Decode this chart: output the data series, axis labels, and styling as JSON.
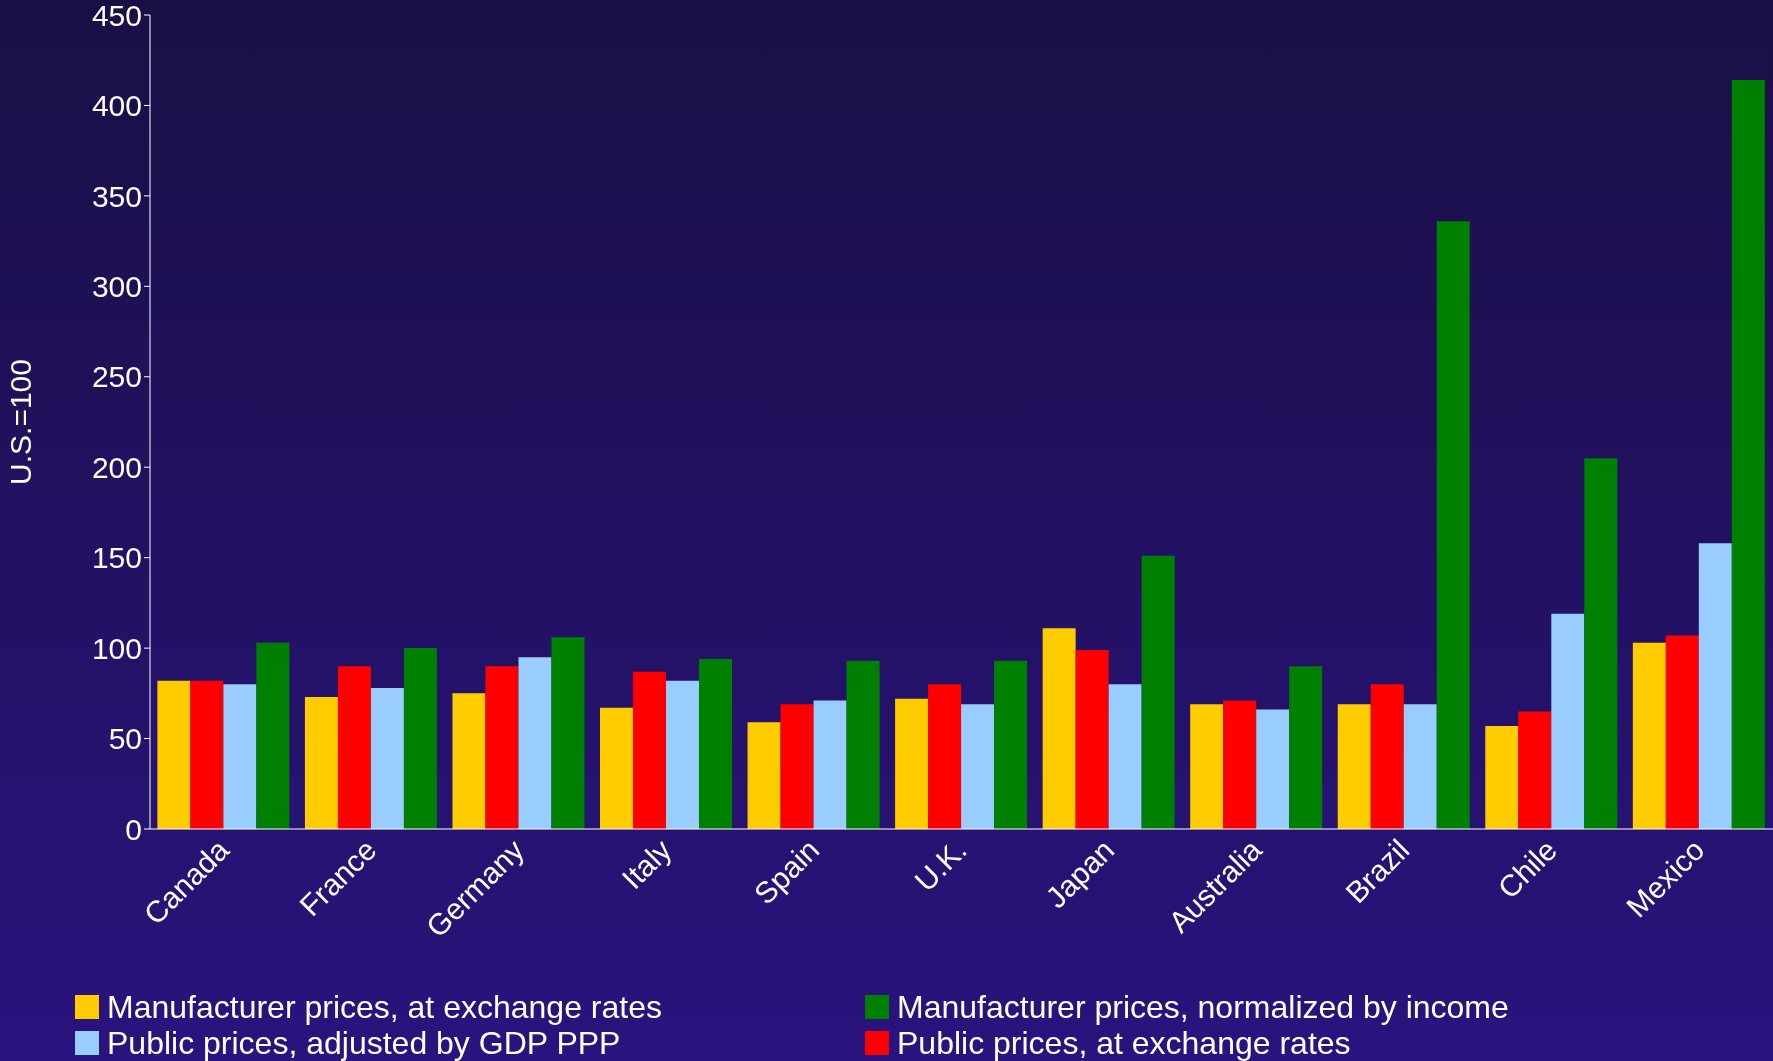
{
  "chart_data": {
    "type": "bar",
    "ylabel": "U.S.=100",
    "categories": [
      "Canada",
      "France",
      "Germany",
      "Italy",
      "Spain",
      "U.K.",
      "Japan",
      "Australia",
      "Brazil",
      "Chile",
      "Mexico"
    ],
    "series": [
      {
        "name": "Manufacturer prices, at exchange rates",
        "color": "#ffcc00",
        "values": [
          82,
          73,
          75,
          67,
          59,
          72,
          111,
          69,
          69,
          57,
          103
        ]
      },
      {
        "name": "Public prices, at exchange rates",
        "color": "#ff0000",
        "values": [
          82,
          90,
          90,
          87,
          69,
          80,
          99,
          71,
          80,
          65,
          107
        ]
      },
      {
        "name": "Public prices, adjusted by GDP PPP",
        "color": "#99ccff",
        "values": [
          80,
          78,
          95,
          82,
          71,
          69,
          80,
          66,
          69,
          119,
          158
        ]
      },
      {
        "name": "Manufacturer prices, normalized by income",
        "color": "#008000",
        "values": [
          103,
          100,
          106,
          94,
          93,
          93,
          151,
          90,
          336,
          205,
          414
        ]
      }
    ],
    "ylim": [
      0,
      450
    ],
    "yticks": [
      0,
      50,
      100,
      150,
      200,
      250,
      300,
      350,
      400,
      450
    ],
    "grid": false,
    "legend": "bottom"
  }
}
